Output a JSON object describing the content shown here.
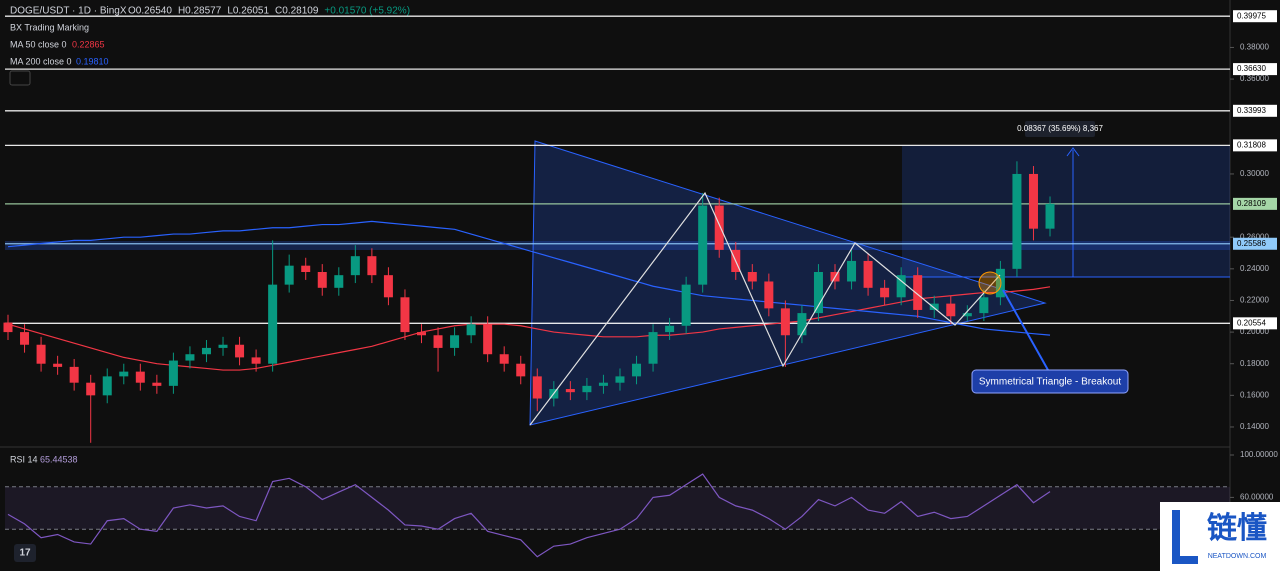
{
  "chart_data": {
    "type": "candlestick",
    "symbol": "DOGE/USDT · 1D · BingX",
    "quote": [
      "O0.26540",
      "H0.28577",
      "L0.26051",
      "C0.28109",
      "+0.01570 (+5.92%)"
    ],
    "indicator": "BX Trading Marking",
    "open": [
      0.206,
      0.2,
      0.192,
      0.18,
      0.178,
      0.168,
      0.16,
      0.172,
      0.175,
      0.168,
      0.166,
      0.182,
      0.186,
      0.19,
      0.192,
      0.184,
      0.18,
      0.23,
      0.242,
      0.238,
      0.228,
      0.236,
      0.248,
      0.236,
      0.222,
      0.2,
      0.198,
      0.19,
      0.198,
      0.205,
      0.186,
      0.18,
      0.172,
      0.158,
      0.164,
      0.162,
      0.166,
      0.168,
      0.172,
      0.18,
      0.2,
      0.204,
      0.23,
      0.28,
      0.252,
      0.238,
      0.232,
      0.215,
      0.198,
      0.212,
      0.238,
      0.232,
      0.245,
      0.228,
      0.222,
      0.236,
      0.214,
      0.218,
      0.21,
      0.212,
      0.222,
      0.24,
      0.3,
      0.2654
    ],
    "high": [
      0.211,
      0.205,
      0.197,
      0.185,
      0.183,
      0.173,
      0.177,
      0.18,
      0.18,
      0.173,
      0.187,
      0.191,
      0.195,
      0.197,
      0.197,
      0.189,
      0.258,
      0.249,
      0.247,
      0.243,
      0.241,
      0.255,
      0.253,
      0.241,
      0.227,
      0.205,
      0.203,
      0.203,
      0.21,
      0.21,
      0.191,
      0.185,
      0.177,
      0.169,
      0.169,
      0.171,
      0.173,
      0.177,
      0.185,
      0.205,
      0.209,
      0.235,
      0.288,
      0.285,
      0.257,
      0.243,
      0.237,
      0.22,
      0.217,
      0.243,
      0.243,
      0.252,
      0.25,
      0.233,
      0.241,
      0.241,
      0.223,
      0.223,
      0.217,
      0.227,
      0.245,
      0.308,
      0.305,
      0.28577
    ],
    "low": [
      0.195,
      0.187,
      0.175,
      0.173,
      0.163,
      0.13,
      0.155,
      0.167,
      0.163,
      0.161,
      0.161,
      0.177,
      0.181,
      0.185,
      0.179,
      0.175,
      0.175,
      0.225,
      0.233,
      0.223,
      0.223,
      0.231,
      0.231,
      0.217,
      0.195,
      0.193,
      0.175,
      0.185,
      0.193,
      0.181,
      0.175,
      0.167,
      0.15,
      0.153,
      0.157,
      0.157,
      0.161,
      0.163,
      0.167,
      0.175,
      0.195,
      0.199,
      0.225,
      0.247,
      0.233,
      0.227,
      0.21,
      0.178,
      0.193,
      0.207,
      0.227,
      0.227,
      0.223,
      0.217,
      0.217,
      0.209,
      0.209,
      0.205,
      0.207,
      0.207,
      0.217,
      0.235,
      0.258,
      0.26051
    ],
    "close": [
      0.2,
      0.192,
      0.18,
      0.178,
      0.168,
      0.16,
      0.172,
      0.175,
      0.168,
      0.166,
      0.182,
      0.186,
      0.19,
      0.192,
      0.184,
      0.18,
      0.23,
      0.242,
      0.238,
      0.228,
      0.236,
      0.248,
      0.236,
      0.222,
      0.2,
      0.198,
      0.19,
      0.198,
      0.205,
      0.186,
      0.18,
      0.172,
      0.158,
      0.164,
      0.162,
      0.166,
      0.168,
      0.172,
      0.18,
      0.2,
      0.204,
      0.23,
      0.28,
      0.252,
      0.238,
      0.232,
      0.215,
      0.198,
      0.212,
      0.238,
      0.232,
      0.245,
      0.228,
      0.222,
      0.236,
      0.214,
      0.218,
      0.21,
      0.212,
      0.222,
      0.24,
      0.3,
      0.2654,
      0.28109
    ],
    "up_color": "#089981",
    "down_color": "#f23645",
    "series": [
      {
        "name": "MA 50 close 0",
        "legend_value": "0.22865",
        "color": "#f23645",
        "values": [
          0.205,
          0.202,
          0.199,
          0.196,
          0.193,
          0.19,
          0.187,
          0.184,
          0.182,
          0.18,
          0.179,
          0.178,
          0.177,
          0.176,
          0.176,
          0.177,
          0.179,
          0.181,
          0.183,
          0.185,
          0.187,
          0.189,
          0.191,
          0.194,
          0.197,
          0.2,
          0.202,
          0.204,
          0.205,
          0.205,
          0.205,
          0.204,
          0.202,
          0.2,
          0.199,
          0.198,
          0.197,
          0.197,
          0.197,
          0.198,
          0.198,
          0.199,
          0.2,
          0.202,
          0.203,
          0.204,
          0.205,
          0.206,
          0.207,
          0.209,
          0.211,
          0.213,
          0.215,
          0.217,
          0.219,
          0.221,
          0.222,
          0.223,
          0.224,
          0.225,
          0.225,
          0.226,
          0.227,
          0.22865
        ]
      },
      {
        "name": "MA 200 close 0",
        "legend_value": "0.19810",
        "color": "#2962ff",
        "values": [
          0.254,
          0.255,
          0.256,
          0.257,
          0.258,
          0.258,
          0.259,
          0.26,
          0.26,
          0.261,
          0.262,
          0.262,
          0.263,
          0.264,
          0.264,
          0.265,
          0.266,
          0.266,
          0.267,
          0.268,
          0.268,
          0.269,
          0.27,
          0.269,
          0.268,
          0.267,
          0.266,
          0.265,
          0.262,
          0.259,
          0.256,
          0.253,
          0.25,
          0.247,
          0.244,
          0.241,
          0.238,
          0.235,
          0.232,
          0.229,
          0.227,
          0.225,
          0.223,
          0.222,
          0.221,
          0.22,
          0.219,
          0.218,
          0.217,
          0.216,
          0.215,
          0.214,
          0.213,
          0.212,
          0.211,
          0.21,
          0.208,
          0.206,
          0.204,
          0.202,
          0.201,
          0.2,
          0.199,
          0.1981
        ]
      }
    ],
    "ylim": [
      0.1286,
      0.41
    ],
    "yticks": [
      {
        "value": 0.14,
        "label": "0.14000"
      },
      {
        "value": 0.16,
        "label": "0.16000"
      },
      {
        "value": 0.18,
        "label": "0.18000"
      },
      {
        "value": 0.2,
        "label": "0.20000"
      },
      {
        "value": 0.22,
        "label": "0.22000"
      },
      {
        "value": 0.24,
        "label": "0.24000"
      },
      {
        "value": 0.26,
        "label": "0.26000"
      },
      {
        "value": 0.3,
        "label": "0.30000"
      },
      {
        "value": 0.36,
        "label": "0.36000"
      },
      {
        "value": 0.38,
        "label": "0.38000"
      }
    ],
    "levels": [
      {
        "value": 0.39975,
        "label": "0.39975",
        "color": "#ffffff"
      },
      {
        "value": 0.3663,
        "label": "0.36630",
        "color": "#ffffff"
      },
      {
        "value": 0.33993,
        "label": "0.33993",
        "color": "#ffffff"
      },
      {
        "value": 0.31808,
        "label": "0.31808",
        "color": "#ffffff"
      },
      {
        "value": 0.28109,
        "label": "0.28109",
        "color": "#a5d6a7"
      },
      {
        "value": 0.25586,
        "label": "0.25586",
        "color": "#90caf9"
      },
      {
        "value": 0.20554,
        "label": "0.20554",
        "color": "#ffffff"
      }
    ],
    "measure_label": "0.08367 (35.69%) 8,367",
    "annotation": "Symmetrical Triangle - Breakout",
    "rsi": {
      "name": "RSI 14",
      "legend_value": "65.44538",
      "color": "#7e57c2",
      "values": [
        44,
        35,
        22,
        25,
        18,
        16,
        38,
        40,
        30,
        28,
        50,
        53,
        50,
        52,
        42,
        38,
        75,
        78,
        70,
        58,
        65,
        72,
        60,
        48,
        34,
        33,
        30,
        40,
        45,
        28,
        24,
        20,
        4,
        14,
        16,
        22,
        26,
        30,
        40,
        60,
        62,
        72,
        82,
        60,
        52,
        48,
        40,
        30,
        42,
        58,
        52,
        60,
        48,
        45,
        56,
        42,
        46,
        40,
        42,
        52,
        62,
        72,
        55,
        65.44538
      ],
      "ylim": [
        0,
        100
      ],
      "yticks": [
        {
          "value": 100,
          "label": "100.00000"
        },
        {
          "value": 60,
          "label": "60.00000"
        }
      ],
      "band": [
        30,
        70
      ]
    },
    "watermark": {
      "title": "链懂",
      "site": "NEATDOWN.COM"
    }
  }
}
